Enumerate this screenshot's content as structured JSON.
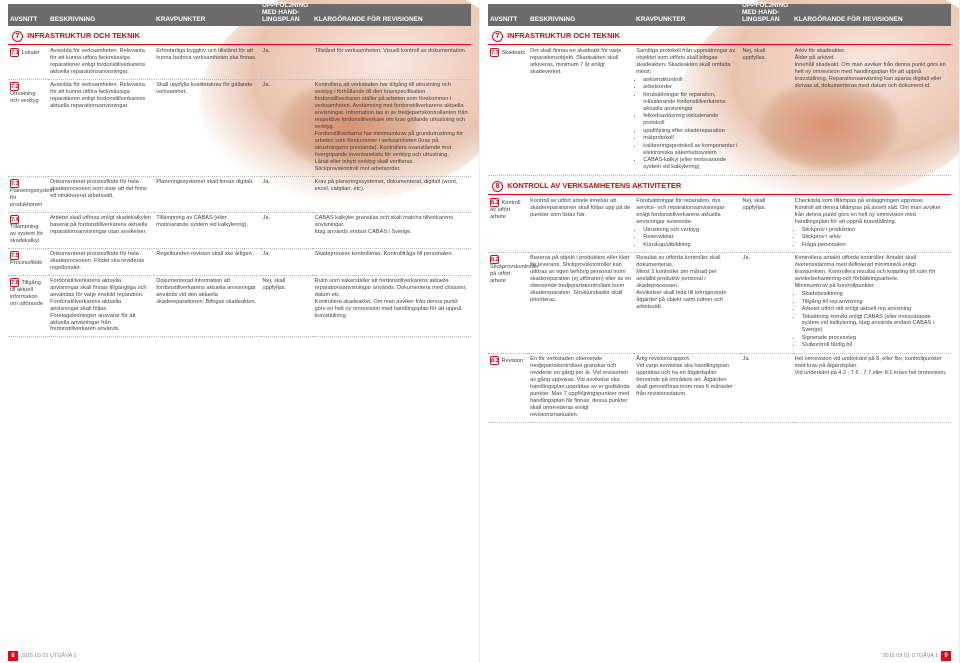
{
  "headers": {
    "avsnitt": "Avsnitt",
    "beskrivning": "Beskrivning",
    "kravpunkter": "Kravpunkter",
    "uppfoljning": "Uppföljning med hand-lingsplan",
    "klargorande": "klargörande för revisionen"
  },
  "footer": {
    "edition": "2015 03 01 UTGÅVA 1",
    "page_left": "8",
    "page_right": "9"
  },
  "left": {
    "section": {
      "num": "7",
      "title": "Infrastruktur och teknik"
    },
    "rows": [
      {
        "n": "7.1",
        "a": "Lokaler",
        "b": "Avsedda för verksamheten. Relevanta för att kunna utföra fackmässiga reparationer enligt fordonstillverkarens aktuella reparationsanvisningar.",
        "c": "Erforderliga bygglov och tillstånd för att kunna bedriva verksamheten ska finnas.",
        "d": "Ja.",
        "e": "Tillstånd för verksamheten. Visuell kontroll av dokumentation."
      },
      {
        "n": "7.2",
        "a": "Utrustning och verktyg",
        "b": "Avsedda för verksamheten. Relevanta för att kunna utföra fackmässiga reparationer enligt fordonstillverkarens aktuella reparationsanvisningar.",
        "c": "Skall uppfylla kvalitetskrav för gällande verksamhet.",
        "d": "Ja.",
        "e": "Kontrollera att verkstaden har tillgång till utrustning och verktyg i förhållande till den kravspecifikation fordonstillverkaren ställer på arbeten som förekommer i verksamheten. Avstämning mot fordonstillverkarens aktuella anvisningar. Information tas in av tredjepartskontrollanten från respektive fordonstillverkare om krav gällande utrustning och verktyg.\nFordonstillverkarna har minimumkrav på grundutrustning för arbeten som förekommer i verksamheten (krav på utrustningens prestanda). Kontrollera ovanstående mot övergripande inventarielista för verktyg och utrustning.\nLånat eller inhyrt verktyg skall verifieras.\nStickprovskontroll mot arbetsorder."
      },
      {
        "n": "7.3",
        "a": "Planeringssystem för produktionen",
        "b": "Dokumenterat processflöde för hela skadeprocessen som visar att det finns ett strukturerat arbetssätt.",
        "c": "Planeringssystemet skall finnas digitalt.",
        "d": "Ja.",
        "e": "Krav på planeringssystemet, dokumenterat, digitalt (word, excel, cabplan, etc)."
      },
      {
        "n": "7.4",
        "a": "Tillämpning av system för skadekalkyl",
        "b": "Arbetet skall utföras enligt skadekalkylen baserat på fordonstillverkarens aktuella reparationsanvisningar utan avvikelser.",
        "c": "Tillämpning av CABAS (eller motsvarande system vid kalkylering).",
        "d": "Ja.",
        "e": "CABAS kalkyler granskas och skall matcha tillverkarens anvisningar.\nIdag används endast CABAS i Sverige."
      },
      {
        "n": "7.5",
        "a": "Processflöde",
        "b": "Dokumenterat processflöde för hela skadeprocessen. Flödet ska revideras regelbundet.",
        "c": "Regelbunden revision skall ske årligen.",
        "d": "Ja.",
        "e": "Skadeprocess kontrolleras. Kontrollfråga till personalen."
      },
      {
        "n": "7.6",
        "a": "Tillgång till aktuell information om utförande",
        "b": "Fordonstillverkarens aktuella anvisningar skall finnas tillgängliga och användas för varje enskild reparation. Fordonstillverkarens aktuella anvisningar skall följas.\nFöretagsledningen ansvarar för att aktuella anvisningar från fordonstillverkaren används.",
        "c": "Dokumenterad information att fordonstillverkarens aktuella anvisningar används vid den aktuella skadereparationen. Bifogas skadeakten.",
        "d": "Nej, skall uppfyllas.",
        "e": "Rutin som säkerställer att fordonstillverkarens aktuella reparationsanvisningar används. Dokumentera med chassinr, datum etc.\nKontrollera skadeakter. Om man avviker från denna punkt görs en helt ny omrevision med handlingsplan för att uppnå kravställning."
      }
    ]
  },
  "right": {
    "section7": {
      "num": "7",
      "title": "Infrastruktur och teknik"
    },
    "rows7": [
      {
        "n": "7.7",
        "a": "Skadeakt",
        "b": "Det skall finnas en skadeakt för varje reparationsobjekt. Skadeakten skall arkiveras, minimum 7 år enligt skatteverket.",
        "c": "Samtliga protokoll från uppmätningar av objektet som utförts skall bifogas skadeakten. Skadeakten skall omfatta minst:",
        "c_list": [
          "ankomstkontroll",
          "arbetsorder",
          "förutsättningar för reparation, inkluderande fordonstillverkarens aktuella anvisningar",
          "felkodsavläsning inkluderande protokoll",
          "uppföljning efter skadereparation",
          "mätprotokoll",
          "kalibreringsprotokoll av komponenter i elektroniska säkerhetssystem",
          "CABAS-kalkyl (eller motsvarande system vid kalkylering)"
        ],
        "d": "Nej, skall uppfyllas.",
        "e": "Arkiv för skadeakter.\nÅlder på arkivet.\nInnehåll skadeakt. Om man avviker från denna punkt görs en helt ny omrevision med handlingsplan för att uppnå kravställning. Reparationsanvisning kan sparas digitalt eller skrivas ut, dokumenteras med datum och dokument-id."
      }
    ],
    "section8": {
      "num": "8",
      "title": "Kontroll av verksamhetens aktiviteter"
    },
    "rows8": [
      {
        "n": "8.1",
        "a": "Kontroll av utfört arbete",
        "b": "Kontroll av utfört arbete innebär att skadereparationen skall följas upp på de punkter som listas här.",
        "c": "Förutsättningar för reparation, dvs service- och reparationsanvisningar enligt fordonstillverkarens aktuella anvisningar avseende:",
        "c_list": [
          "Utrustning och verktyg",
          "Reservdelar",
          "Kunskap/utbildning"
        ],
        "d": "Nej, skall uppfyllas.",
        "e": "Checklista som tillämpas på anläggningen uppvisas.\nKontroll att denna tillämpas på avsett sätt. Om man avviker från denna punkt görs en helt ny omrevision med handlingsplan för att uppnå kravställning.",
        "e_list": [
          "Stickprov i produktion",
          "Stickprov i arkiv",
          "Fråga personalen"
        ]
      },
      {
        "n": "8.2",
        "a": "Stickprovskontroller på utfört arbete",
        "b": "Baseras på objekt i produktion eller klart för leverans. Stickprovskontroller kan utföras av egen behörig personal inom skadereparation (ej utföraren) eller av en oberoende tredjepartskontrollant inom skadereparation. Strukturskador skall prioriteras.",
        "c": "Resultat av utförda kontroller skall dokumenteras.\nMinst 2 kontroller per månad per anställd produktiv personal i skadeprocessen.\nAvvikelser skall leda till korrigerande åtgärder på objekt samt rutiner och arbetssätt.",
        "d": "Ja.",
        "e": "Kontrollera antalet utförda kontroller. Antalet skall överensstämma med definierad miniminivå enligt kravpunkten. Kontrollera resultat och koppling till rutin för avvikelsehantering och förbättringsarbete.\nMinimumkrav på kontrollpunkter:",
        "e_list": [
          "Skadebesiktning",
          "Tillgång till rep.anvisning",
          "Arbetet utfört rätt enligt aktuell rep.anvisning",
          "Tidsättning korrekt enligt CABAS (eller motsvarande system vid kalkylering, idag används endast CABAS i Sverige)",
          "Signerade processteg",
          "Slutkontroll färdig bil"
        ]
      },
      {
        "n": "8.3",
        "a": "Revision",
        "b": "En för verkstaden oberoende tredjepartskontrollant granskar och reviderar en gång per år. Vid revisionen av gång uppvisas. Vid avvikelse ska handlingsplan upprättas av er godkända punkter. Max 7 uppföljningspunkter med handlingsplan får finnas, dessa punkter skall omrevideras enligt revisionsmanualen.",
        "c": "Årlig revisionsrapport.\nVid varje avvikelse ska handlingsplan upprättas och ha en åtgärdsplan beroende på områdets art. Åtgärden skall genomföras inom max 6 månader från revisionsdatum.",
        "d": "Ja.",
        "e": "Hel omrevision vid underkänt på 8, eller fler, kontrollpunkter med krav på åtgärdsplan.\nVid underkänt på 4.2 ; 7.6 ; 7.7 eller 8.1 krävs hel omrevision."
      }
    ]
  }
}
